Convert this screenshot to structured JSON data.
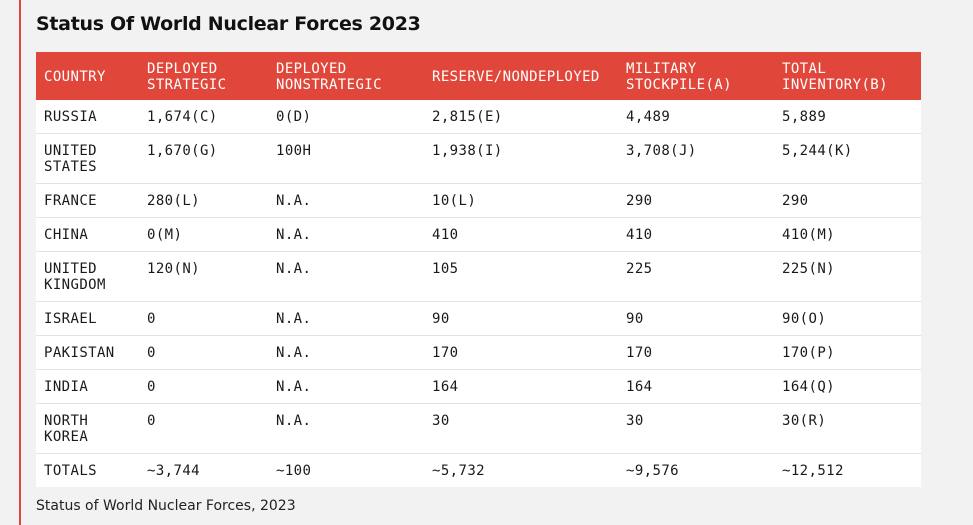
{
  "title": "Status Of World Nuclear Forces 2023",
  "caption": "Status of World Nuclear Forces, 2023",
  "colors": {
    "accent": "#e0473a",
    "header_text": "#ffffff",
    "background": "#f2f2f2"
  },
  "table": {
    "headers": [
      "COUNTRY",
      "DEPLOYED STRATEGIC",
      "DEPLOYED NONSTRATEGIC",
      "RESERVE/NONDEPLOYED",
      "MILITARY STOCKPILE(A)",
      "TOTAL INVENTORY(B)"
    ],
    "rows": [
      [
        "RUSSIA",
        "1,674(C)",
        "0(D)",
        "2,815(E)",
        "4,489",
        "5,889"
      ],
      [
        "UNITED STATES",
        "1,670(G)",
        "100H",
        "1,938(I)",
        "3,708(J)",
        "5,244(K)"
      ],
      [
        "FRANCE",
        "280(L)",
        "N.A.",
        "10(L)",
        "290",
        "290"
      ],
      [
        "CHINA",
        "0(M)",
        "N.A.",
        "410",
        "410",
        "410(M)"
      ],
      [
        "UNITED KINGDOM",
        "120(N)",
        "N.A.",
        "105",
        "225",
        "225(N)"
      ],
      [
        "ISRAEL",
        "0",
        "N.A.",
        "90",
        "90",
        "90(O)"
      ],
      [
        "PAKISTAN",
        "0",
        "N.A.",
        "170",
        "170",
        "170(P)"
      ],
      [
        "INDIA",
        "0",
        "N.A.",
        "164",
        "164",
        "164(Q)"
      ],
      [
        "NORTH KOREA",
        "0",
        "N.A.",
        "30",
        "30",
        "30(R)"
      ],
      [
        "TOTALS",
        "~3,744",
        "~100",
        "~5,732",
        "~9,576",
        "~12,512"
      ]
    ]
  }
}
